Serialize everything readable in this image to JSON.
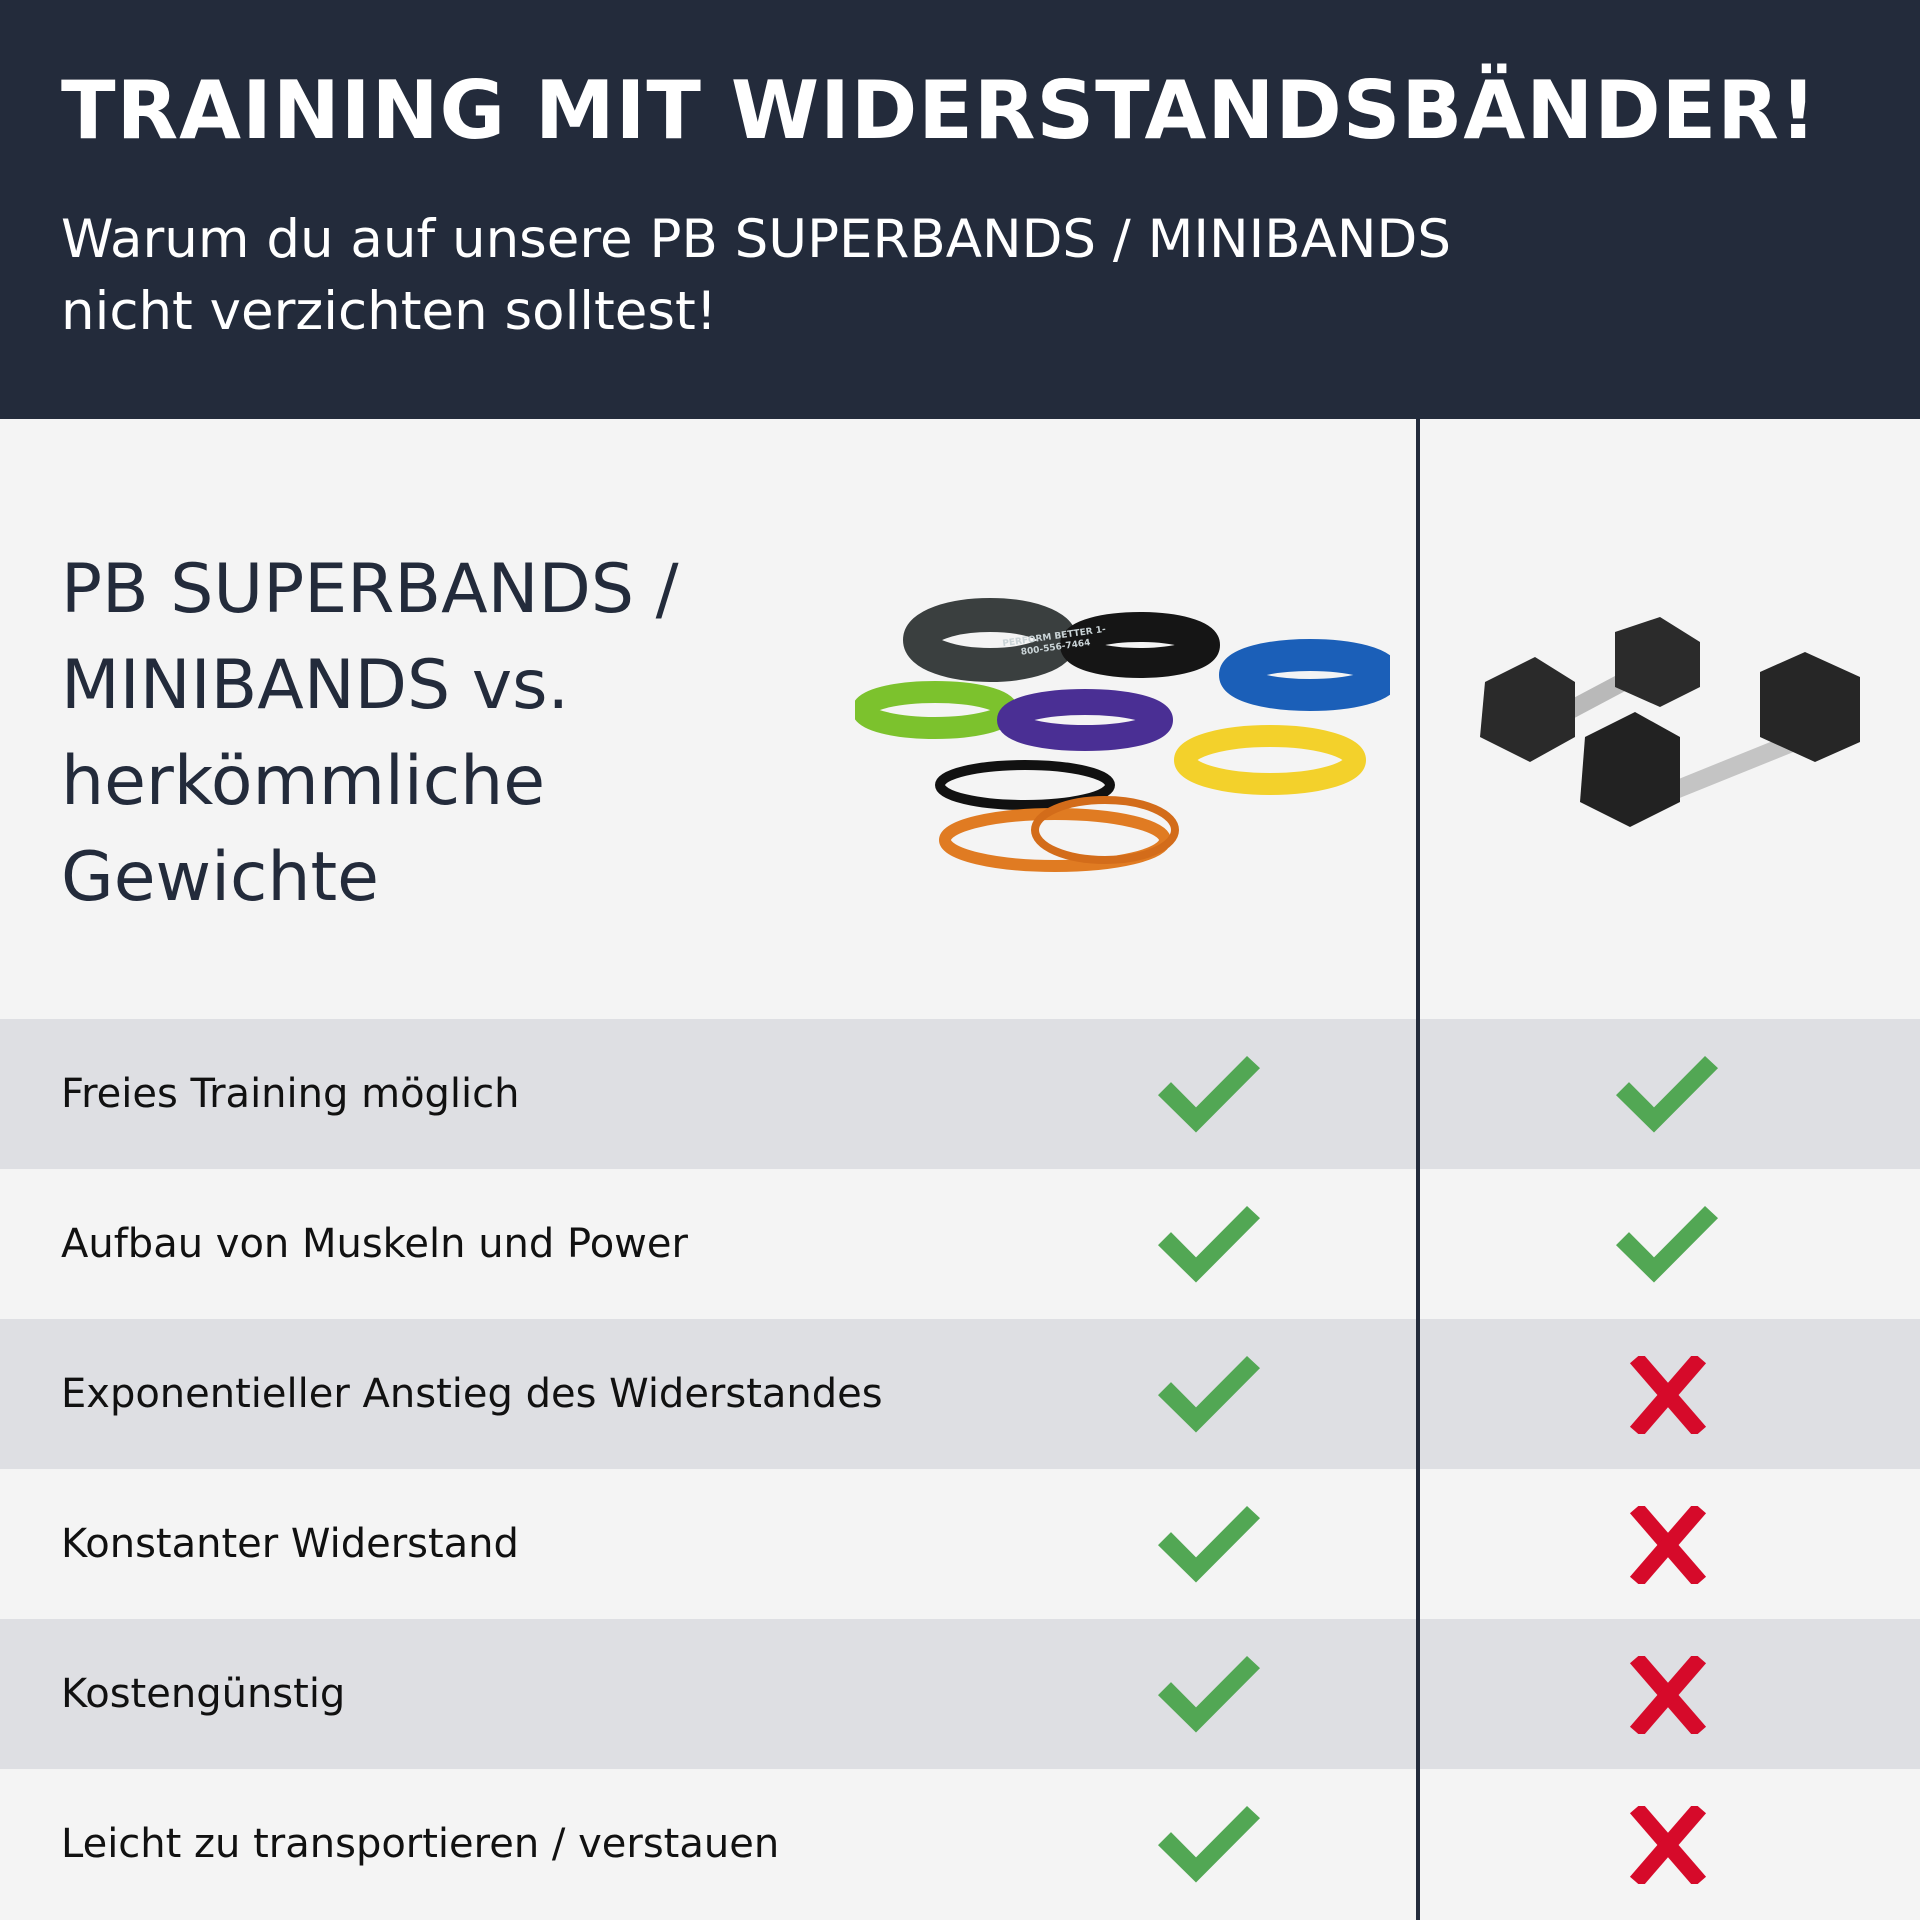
{
  "header": {
    "title": "TRAINING MIT WIDERSTANDSBÄNDER!",
    "subtitle_line1": "Warum du auf unsere PB SUPERBANDS / MINIBANDS",
    "subtitle_line2": "nicht verzichten solltest!"
  },
  "comparison": {
    "heading_lines": [
      "PB SUPERBANDS /",
      "MINIBANDS vs.",
      "herkömmliche",
      "Gewichte"
    ],
    "columns": [
      {
        "image": "resistance-bands-photo",
        "brand_print": "PERFORM BETTER 1-800-556-7464"
      },
      {
        "image": "hex-dumbbells-photo"
      }
    ],
    "rows": [
      {
        "label": "Freies Training möglich",
        "bands": "check",
        "weights": "check"
      },
      {
        "label": "Aufbau von Muskeln und Power",
        "bands": "check",
        "weights": "check"
      },
      {
        "label": "Exponentieller Anstieg des Widerstandes",
        "bands": "check",
        "weights": "cross"
      },
      {
        "label": "Konstanter Widerstand",
        "bands": "check",
        "weights": "cross"
      },
      {
        "label": "Kostengünstig",
        "bands": "check",
        "weights": "cross"
      },
      {
        "label": "Leicht zu transportieren / verstauen",
        "bands": "check",
        "weights": "cross"
      }
    ]
  },
  "colors": {
    "header_bg": "#232b3b",
    "check": "#52a754",
    "cross": "#d60a2a",
    "row_alt": "#dedfe3",
    "row_bg": "#f4f4f4"
  }
}
